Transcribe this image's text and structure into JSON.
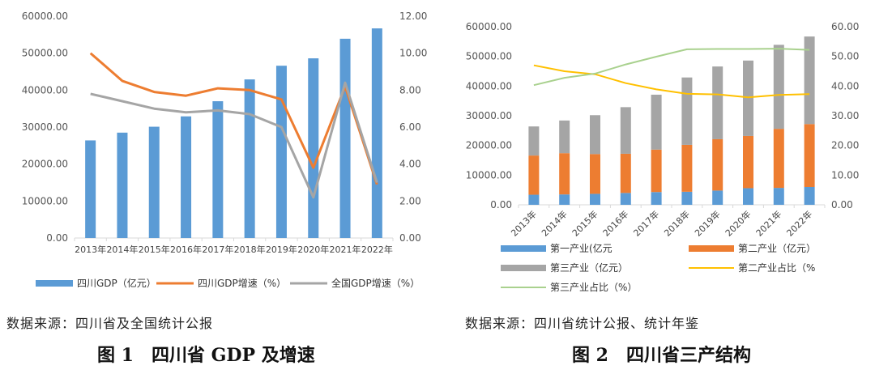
{
  "charts": {
    "colors": {
      "blue": "#5B9BD5",
      "orange": "#ED7D31",
      "gray": "#A5A5A5",
      "yellow": "#FFC000",
      "lightgreen": "#A9D18E",
      "axis": "#D9D9D9"
    }
  },
  "chart_data": [
    {
      "type": "bar",
      "title": "",
      "caption": "图 1　四川省 GDP 及增速",
      "source": "数据来源：四川省及全国统计公报",
      "categories": [
        "2013年",
        "2014年",
        "2015年",
        "2016年",
        "2017年",
        "2018年",
        "2019年",
        "2020年",
        "2021年",
        "2022年"
      ],
      "y_left": {
        "min": 0,
        "max": 60000,
        "ticks": [
          "0.00",
          "10000.00",
          "20000.00",
          "30000.00",
          "40000.00",
          "50000.00",
          "60000.00"
        ]
      },
      "y_right": {
        "min": 0,
        "max": 12,
        "ticks": [
          "0.00",
          "2.00",
          "4.00",
          "6.00",
          "8.00",
          "10.00",
          "12.00"
        ]
      },
      "series": [
        {
          "name": "四川GDP（亿元）",
          "kind": "bar",
          "axis": "left",
          "color": "#5B9BD5",
          "values": [
            26400,
            28500,
            30100,
            32900,
            37000,
            42900,
            46600,
            48600,
            53900,
            56700
          ]
        },
        {
          "name": "四川GDP增速（%）",
          "kind": "line",
          "axis": "right",
          "color": "#ED7D31",
          "values": [
            10.0,
            8.5,
            7.9,
            7.7,
            8.1,
            8.0,
            7.5,
            3.8,
            8.2,
            2.9
          ]
        },
        {
          "name": "全国GDP增速（%）",
          "kind": "line",
          "axis": "right",
          "color": "#A5A5A5",
          "values": [
            7.8,
            7.4,
            7.0,
            6.8,
            6.9,
            6.7,
            6.0,
            2.2,
            8.4,
            3.0
          ]
        }
      ],
      "legend": "bottom",
      "grid": false
    },
    {
      "type": "bar",
      "title": "",
      "caption": "图 2　四川省三产结构",
      "source": "数据来源：四川省统计公报、统计年鉴",
      "categories": [
        "2013年",
        "2014年",
        "2015年",
        "2016年",
        "2017年",
        "2018年",
        "2019年",
        "2020年",
        "2021年",
        "2022年"
      ],
      "stacked": true,
      "y_left": {
        "min": 0,
        "max": 60000,
        "ticks": [
          "0.00",
          "10000.00",
          "20000.00",
          "30000.00",
          "40000.00",
          "50000.00",
          "60000.00"
        ]
      },
      "y_right": {
        "min": 0,
        "max": 60,
        "ticks": [
          "0.00",
          "10.00",
          "20.00",
          "30.00",
          "40.00",
          "50.00",
          "60.00"
        ]
      },
      "series": [
        {
          "name": "第一产业(亿元",
          "kind": "bar",
          "axis": "left",
          "color": "#5B9BD5",
          "values": [
            3400,
            3500,
            3700,
            4000,
            4300,
            4400,
            4800,
            5600,
            5700,
            6000
          ]
        },
        {
          "name": "第二产业（亿元）",
          "kind": "bar",
          "axis": "left",
          "color": "#ED7D31",
          "values": [
            13200,
            13900,
            13400,
            13200,
            14300,
            15800,
            17300,
            17600,
            19900,
            21200
          ]
        },
        {
          "name": "第三产业（亿元）",
          "kind": "bar",
          "axis": "left",
          "color": "#A5A5A5",
          "values": [
            9800,
            11000,
            13100,
            15700,
            18500,
            22700,
            24500,
            25400,
            28300,
            29500
          ]
        },
        {
          "name": "第二产业占比（%",
          "kind": "line",
          "axis": "right",
          "color": "#FFC000",
          "values": [
            47.0,
            45.0,
            44.0,
            41.0,
            38.9,
            37.4,
            37.2,
            36.2,
            37.0,
            37.3
          ]
        },
        {
          "name": "第三产业占比（%）",
          "kind": "line",
          "axis": "right",
          "color": "#A9D18E",
          "values": [
            40.3,
            42.8,
            44.2,
            47.3,
            49.9,
            52.4,
            52.5,
            52.5,
            52.6,
            52.2
          ]
        }
      ],
      "legend": "bottom",
      "grid": false
    }
  ]
}
